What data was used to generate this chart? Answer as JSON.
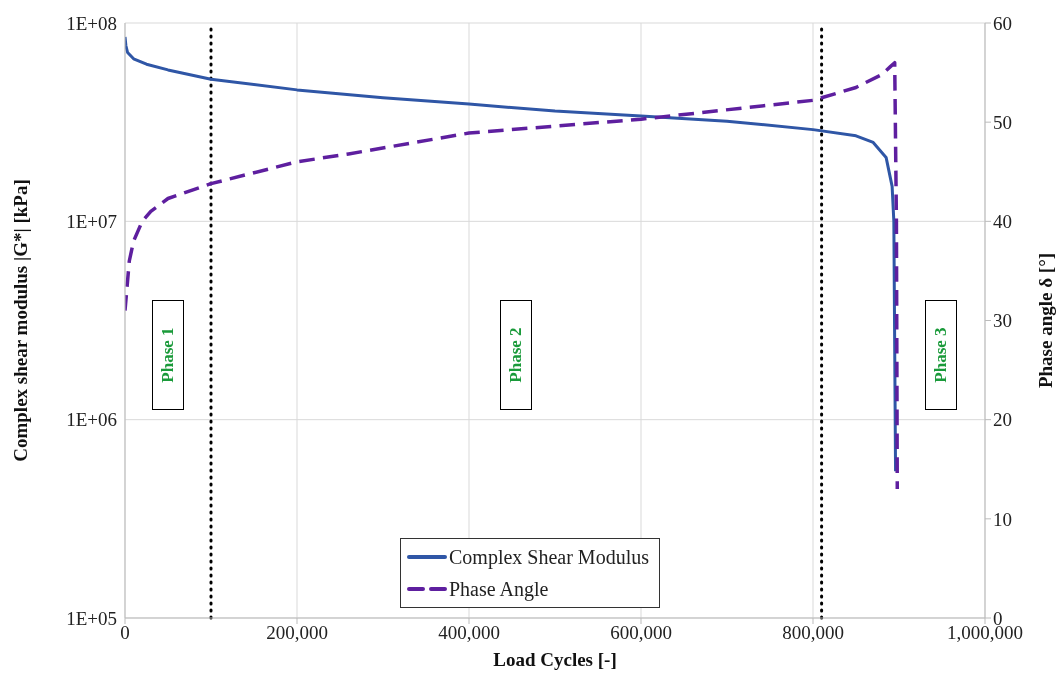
{
  "chart_data": {
    "type": "line",
    "xlabel": "Load Cycles [-]",
    "ylabel": "Complex shear modulus |G*| [kPa]",
    "y2label": "Phase angle δ [°]",
    "xlim": [
      0,
      1000000
    ],
    "xticks": [
      {
        "value": 0,
        "label": "0"
      },
      {
        "value": 200000,
        "label": "200,000"
      },
      {
        "value": 400000,
        "label": "400,000"
      },
      {
        "value": 600000,
        "label": "600,000"
      },
      {
        "value": 800000,
        "label": "800,000"
      },
      {
        "value": 1000000,
        "label": "1,000,000"
      }
    ],
    "ylim": [
      100000,
      100000000
    ],
    "yticks": [
      {
        "value": 100000,
        "label": "1E+05"
      },
      {
        "value": 1000000,
        "label": "1E+06"
      },
      {
        "value": 10000000,
        "label": "1E+07"
      },
      {
        "value": 100000000,
        "label": "1E+08"
      }
    ],
    "y2lim": [
      0,
      60
    ],
    "y2ticks": [
      0,
      10,
      20,
      30,
      40,
      50,
      60
    ],
    "log": "y",
    "grid": true,
    "legend": "bottom",
    "marker": "none",
    "series": [
      {
        "name": "Complex Shear Modulus",
        "color": "#2f56a6",
        "line_style": "solid",
        "x": [
          0,
          1000,
          3000,
          10000,
          25000,
          50000,
          100000,
          200000,
          300000,
          400000,
          500000,
          600000,
          700000,
          800000,
          850000,
          870000,
          885000,
          892000,
          894000,
          896000
        ],
        "values": [
          85000000,
          77000000,
          71000000,
          66000000,
          62000000,
          58000000,
          52000000,
          46000000,
          42000000,
          39000000,
          36000000,
          34000000,
          32000000,
          29000000,
          27000000,
          25000000,
          21000000,
          15000000,
          10000000,
          550000
        ]
      },
      {
        "name": "Phase Angle",
        "color": "#5e1f9f",
        "line_style": "dashed",
        "axis": "y2",
        "x": [
          0,
          5000,
          10000,
          20000,
          30000,
          50000,
          100000,
          150000,
          200000,
          260000,
          400000,
          600000,
          800000,
          850000,
          880000,
          890000,
          895000,
          897000,
          898000
        ],
        "values": [
          31,
          36,
          38,
          40,
          41,
          42.3,
          43.8,
          44.9,
          46,
          46.8,
          48.9,
          50.3,
          52.2,
          53.5,
          54.8,
          55.6,
          56,
          40,
          13
        ]
      }
    ],
    "ref_lines": [
      {
        "axis": "x",
        "value": 100000,
        "color": "#000000",
        "line_style": "dotted"
      },
      {
        "axis": "x",
        "value": 810000,
        "color": "#000000",
        "line_style": "dotted"
      }
    ],
    "annotations": [
      "Phase 1",
      "Phase 2",
      "Phase 3"
    ]
  }
}
